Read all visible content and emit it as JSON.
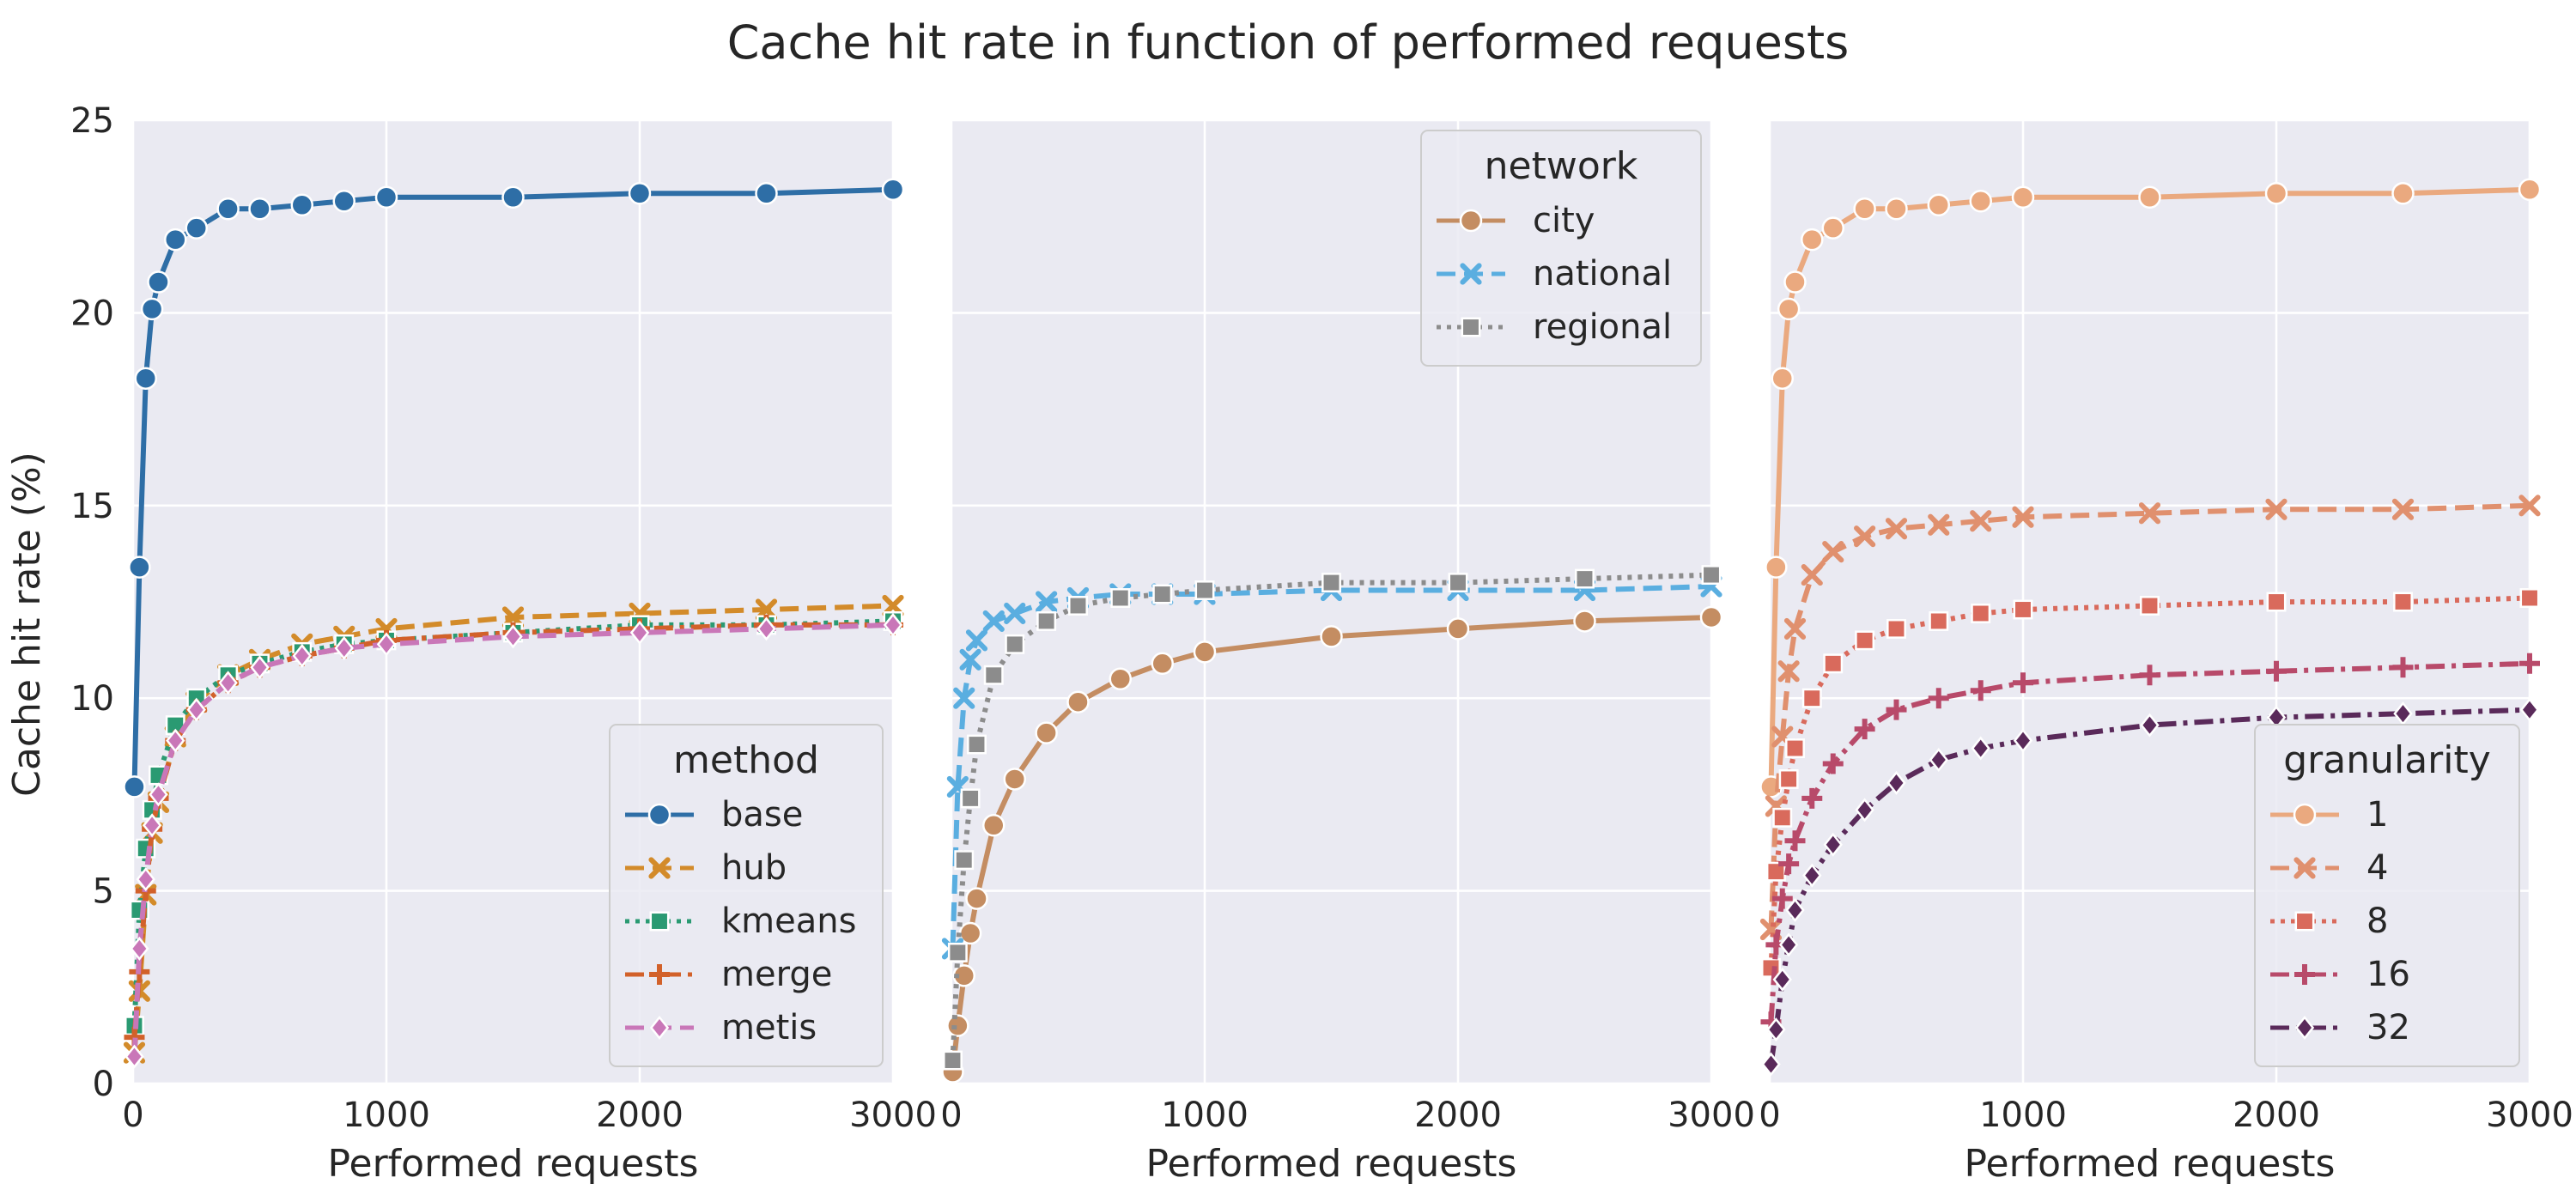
{
  "figure": {
    "title": "Cache hit rate in function of performed requests",
    "ylabel": "Cache hit rate (%)"
  },
  "chart_data": [
    {
      "type": "line",
      "xlabel": "Performed requests",
      "ylabel": "Cache hit rate (%)",
      "xlim": [
        0,
        3000
      ],
      "ylim": [
        0,
        25
      ],
      "xticks": [
        "0",
        "1000",
        "2000",
        "3000"
      ],
      "yticks": [
        "0",
        "5",
        "10",
        "15",
        "20",
        "25"
      ],
      "grid": true,
      "legend": {
        "title": "method",
        "position": "lower-right"
      },
      "series": [
        {
          "name": "base",
          "color": "#2e6ea6",
          "dash": "solid",
          "marker": "circle",
          "x": [
            5,
            25,
            50,
            75,
            100,
            167,
            250,
            375,
            500,
            667,
            833,
            1000,
            1500,
            2000,
            2500,
            3000
          ],
          "y": [
            7.7,
            13.4,
            18.3,
            20.1,
            20.8,
            21.9,
            22.2,
            22.7,
            22.7,
            22.8,
            22.9,
            23.0,
            23.0,
            23.1,
            23.1,
            23.2
          ]
        },
        {
          "name": "hub",
          "color": "#d38b2a",
          "dash": "dashed",
          "marker": "x",
          "x": [
            5,
            25,
            50,
            75,
            100,
            167,
            250,
            375,
            500,
            667,
            833,
            1000,
            1500,
            2000,
            2500,
            3000
          ],
          "y": [
            0.8,
            2.4,
            4.9,
            6.5,
            7.3,
            9.0,
            9.9,
            10.6,
            11.0,
            11.4,
            11.6,
            11.8,
            12.1,
            12.2,
            12.3,
            12.4
          ]
        },
        {
          "name": "kmeans",
          "color": "#2a9a72",
          "dash": "dotted",
          "marker": "square",
          "x": [
            5,
            25,
            50,
            75,
            100,
            167,
            250,
            375,
            500,
            667,
            833,
            1000,
            1500,
            2000,
            2500,
            3000
          ],
          "y": [
            1.5,
            4.5,
            6.1,
            7.1,
            8.0,
            9.3,
            10.0,
            10.6,
            10.9,
            11.2,
            11.4,
            11.5,
            11.7,
            11.9,
            11.9,
            12.0
          ]
        },
        {
          "name": "merge",
          "color": "#d2612a",
          "dash": "dashdot",
          "marker": "plus",
          "x": [
            5,
            25,
            50,
            75,
            100,
            167,
            250,
            375,
            500,
            667,
            833,
            1000,
            1500,
            2000,
            2500,
            3000
          ],
          "y": [
            1.2,
            2.9,
            5.0,
            6.6,
            7.4,
            8.9,
            9.7,
            10.4,
            10.8,
            11.1,
            11.3,
            11.5,
            11.7,
            11.8,
            11.9,
            11.9
          ]
        },
        {
          "name": "metis",
          "color": "#c977b8",
          "dash": "dashed",
          "marker": "diamond",
          "x": [
            5,
            25,
            50,
            75,
            100,
            167,
            250,
            375,
            500,
            667,
            833,
            1000,
            1500,
            2000,
            2500,
            3000
          ],
          "y": [
            0.7,
            3.5,
            5.3,
            6.7,
            7.5,
            8.9,
            9.7,
            10.4,
            10.8,
            11.1,
            11.3,
            11.4,
            11.6,
            11.7,
            11.8,
            11.9
          ]
        }
      ]
    },
    {
      "type": "line",
      "xlabel": "Performed requests",
      "xlim": [
        0,
        3000
      ],
      "ylim": [
        0,
        25
      ],
      "xticks": [
        "0",
        "1000",
        "2000",
        "3000"
      ],
      "grid": true,
      "legend": {
        "title": "network",
        "position": "top-right"
      },
      "series": [
        {
          "name": "city",
          "color": "#c48d62",
          "dash": "solid",
          "marker": "circle",
          "x": [
            5,
            25,
            50,
            75,
            100,
            167,
            250,
            375,
            500,
            667,
            833,
            1000,
            1500,
            2000,
            2500,
            3000
          ],
          "y": [
            0.3,
            1.5,
            2.8,
            3.9,
            4.8,
            6.7,
            7.9,
            9.1,
            9.9,
            10.5,
            10.9,
            11.2,
            11.6,
            11.8,
            12.0,
            12.1
          ]
        },
        {
          "name": "national",
          "color": "#5aaee0",
          "dash": "dashed",
          "marker": "x",
          "x": [
            5,
            25,
            50,
            75,
            100,
            167,
            250,
            375,
            500,
            667,
            833,
            1000,
            1500,
            2000,
            2500,
            3000
          ],
          "y": [
            3.5,
            7.7,
            10.0,
            11.0,
            11.5,
            12.0,
            12.2,
            12.5,
            12.6,
            12.7,
            12.7,
            12.7,
            12.8,
            12.8,
            12.8,
            12.9
          ]
        },
        {
          "name": "regional",
          "color": "#8c8c8c",
          "dash": "dotted",
          "marker": "square",
          "x": [
            5,
            25,
            50,
            75,
            100,
            167,
            250,
            375,
            500,
            667,
            833,
            1000,
            1500,
            2000,
            2500,
            3000
          ],
          "y": [
            0.6,
            3.4,
            5.8,
            7.4,
            8.8,
            10.6,
            11.4,
            12.0,
            12.4,
            12.6,
            12.7,
            12.8,
            13.0,
            13.0,
            13.1,
            13.2
          ]
        }
      ]
    },
    {
      "type": "line",
      "xlabel": "Performed requests",
      "xlim": [
        0,
        3000
      ],
      "ylim": [
        0,
        25
      ],
      "xticks": [
        "0",
        "1000",
        "2000",
        "3000"
      ],
      "grid": true,
      "legend": {
        "title": "granularity",
        "position": "lower-right"
      },
      "series": [
        {
          "name": "1",
          "color": "#eaa97f",
          "dash": "solid",
          "marker": "circle",
          "x": [
            5,
            25,
            50,
            75,
            100,
            167,
            250,
            375,
            500,
            667,
            833,
            1000,
            1500,
            2000,
            2500,
            3000
          ],
          "y": [
            7.7,
            13.4,
            18.3,
            20.1,
            20.8,
            21.9,
            22.2,
            22.7,
            22.7,
            22.8,
            22.9,
            23.0,
            23.0,
            23.1,
            23.1,
            23.2
          ]
        },
        {
          "name": "4",
          "color": "#e0906e",
          "dash": "dashed",
          "marker": "x",
          "x": [
            5,
            25,
            50,
            75,
            100,
            167,
            250,
            375,
            500,
            667,
            833,
            1000,
            1500,
            2000,
            2500,
            3000
          ],
          "y": [
            4.0,
            7.2,
            9.0,
            10.7,
            11.8,
            13.2,
            13.8,
            14.2,
            14.4,
            14.5,
            14.6,
            14.7,
            14.8,
            14.9,
            14.9,
            15.0
          ]
        },
        {
          "name": "8",
          "color": "#d96a5c",
          "dash": "dotted",
          "marker": "square",
          "x": [
            5,
            25,
            50,
            75,
            100,
            167,
            250,
            375,
            500,
            667,
            833,
            1000,
            1500,
            2000,
            2500,
            3000
          ],
          "y": [
            3.0,
            5.5,
            6.9,
            7.9,
            8.7,
            10.0,
            10.9,
            11.5,
            11.8,
            12.0,
            12.2,
            12.3,
            12.4,
            12.5,
            12.5,
            12.6
          ]
        },
        {
          "name": "16",
          "color": "#b84a6a",
          "dash": "dashdot",
          "marker": "plus",
          "x": [
            5,
            25,
            50,
            75,
            100,
            167,
            250,
            375,
            500,
            667,
            833,
            1000,
            1500,
            2000,
            2500,
            3000
          ],
          "y": [
            1.6,
            3.6,
            4.8,
            5.7,
            6.3,
            7.4,
            8.3,
            9.2,
            9.7,
            10.0,
            10.2,
            10.4,
            10.6,
            10.7,
            10.8,
            10.9
          ]
        },
        {
          "name": "32",
          "color": "#5a2a5a",
          "dash": "dashdot",
          "marker": "diamond",
          "x": [
            5,
            25,
            50,
            75,
            100,
            167,
            250,
            375,
            500,
            667,
            833,
            1000,
            1500,
            2000,
            2500,
            3000
          ],
          "y": [
            0.5,
            1.4,
            2.7,
            3.6,
            4.5,
            5.4,
            6.2,
            7.1,
            7.8,
            8.4,
            8.7,
            8.9,
            9.3,
            9.5,
            9.6,
            9.7
          ]
        }
      ]
    }
  ]
}
